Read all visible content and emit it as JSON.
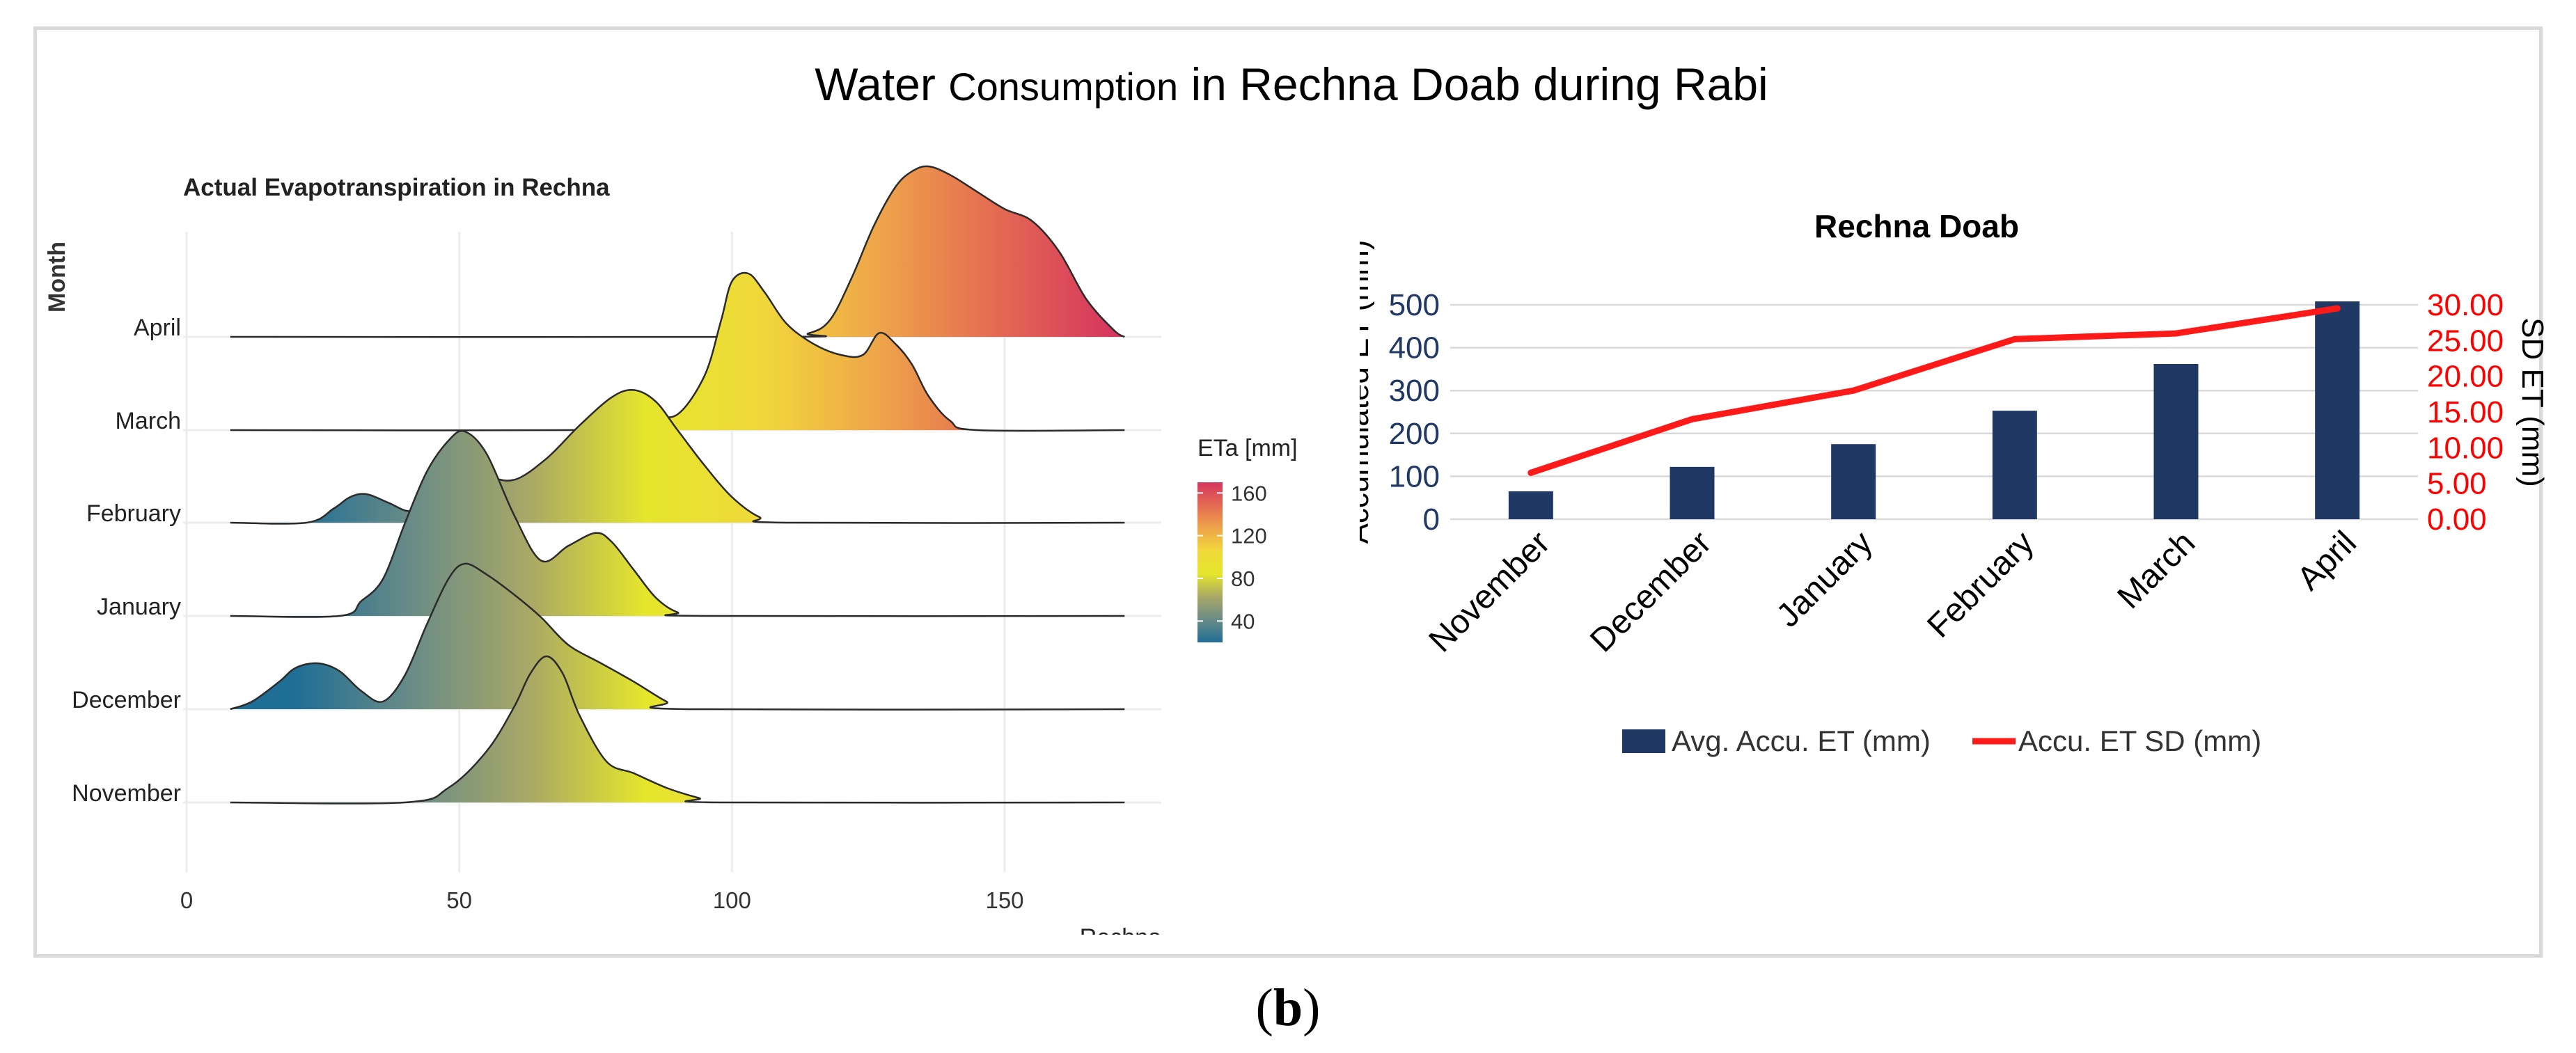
{
  "main_title": {
    "part1": "Water",
    "part2": "Consumption",
    "part3": "in Rechna Doab during Rabi"
  },
  "caption": {
    "open": "(",
    "bold": "b",
    "close": ")"
  },
  "chart_data": [
    {
      "type": "ridgeline",
      "title": "Actual Evapotranspiration in Rechna",
      "xlabel": "Rechna",
      "ylabel": "Month",
      "xlim": [
        0,
        180
      ],
      "xticks": [
        0,
        50,
        100,
        150
      ],
      "xtick_labels": [
        "0",
        "50",
        "100",
        "150"
      ],
      "months": [
        "November",
        "December",
        "January",
        "February",
        "March",
        "April"
      ],
      "legend": {
        "title": "ETa [mm]",
        "ticks": [
          160,
          120,
          80,
          40
        ],
        "tick_labels": [
          "160",
          "120",
          "80",
          "40"
        ],
        "range": [
          20,
          170
        ],
        "colors": [
          "#1f6e96",
          "#6a8c86",
          "#a9a866",
          "#e5e62c",
          "#f0d83a",
          "#eea44a",
          "#e36a52",
          "#d6365e"
        ]
      },
      "densities": [
        {
          "month": "November",
          "x": [
            8,
            40,
            48,
            55,
            60,
            63,
            66,
            69,
            72,
            77,
            82,
            88,
            94,
            98,
            172
          ],
          "y": [
            0,
            0,
            0.1,
            0.35,
            0.65,
            0.88,
            1.0,
            0.88,
            0.6,
            0.28,
            0.2,
            0.1,
            0.03,
            0,
            0
          ]
        },
        {
          "month": "December",
          "x": [
            8,
            12,
            17,
            20,
            24,
            28,
            32,
            36,
            40,
            44,
            48,
            51,
            55,
            60,
            65,
            70,
            76,
            82,
            88,
            92,
            172
          ],
          "y": [
            0,
            0.05,
            0.18,
            0.27,
            0.3,
            0.25,
            0.12,
            0.05,
            0.22,
            0.55,
            0.85,
            0.95,
            0.88,
            0.75,
            0.6,
            0.42,
            0.3,
            0.18,
            0.05,
            0,
            0
          ]
        },
        {
          "month": "January",
          "x": [
            8,
            28,
            32,
            36,
            40,
            44,
            48,
            51,
            55,
            60,
            65,
            70,
            75,
            78,
            82,
            86,
            90,
            95,
            172
          ],
          "y": [
            0,
            0,
            0.08,
            0.2,
            0.5,
            0.78,
            0.95,
            1.0,
            0.88,
            0.55,
            0.3,
            0.38,
            0.45,
            0.4,
            0.25,
            0.1,
            0.02,
            0,
            0
          ]
        },
        {
          "month": "February",
          "x": [
            8,
            22,
            27,
            30,
            33,
            37,
            41,
            45,
            49,
            52,
            55,
            60,
            66,
            72,
            78,
            82,
            86,
            90,
            95,
            100,
            105,
            110,
            172
          ],
          "y": [
            0,
            0,
            0.1,
            0.18,
            0.2,
            0.14,
            0.08,
            0.15,
            0.45,
            0.55,
            0.35,
            0.3,
            0.45,
            0.68,
            0.88,
            0.93,
            0.85,
            0.65,
            0.4,
            0.18,
            0.04,
            0,
            0
          ]
        },
        {
          "month": "March",
          "x": [
            8,
            70,
            75,
            80,
            85,
            90,
            95,
            98,
            100,
            103,
            106,
            110,
            115,
            120,
            124,
            127,
            130,
            133,
            136,
            140,
            145,
            172
          ],
          "y": [
            0,
            0,
            0.03,
            0.1,
            0.1,
            0.1,
            0.35,
            0.7,
            0.95,
            1.0,
            0.88,
            0.68,
            0.55,
            0.48,
            0.48,
            0.62,
            0.55,
            0.42,
            0.22,
            0.06,
            0,
            0
          ]
        },
        {
          "month": "April",
          "x": [
            8,
            108,
            114,
            118,
            122,
            126,
            130,
            133,
            136,
            140,
            145,
            150,
            155,
            160,
            165,
            170,
            172
          ],
          "y": [
            0,
            0,
            0.02,
            0.1,
            0.35,
            0.65,
            0.88,
            0.97,
            1.0,
            0.95,
            0.85,
            0.75,
            0.68,
            0.5,
            0.22,
            0.04,
            0
          ]
        }
      ]
    },
    {
      "type": "bar+line",
      "title": "Rechna Doab",
      "categories": [
        "November",
        "December",
        "January",
        "February",
        "March",
        "April"
      ],
      "ylabel": "Accumulated ET (mm)",
      "y2label": "SD ET (mm)",
      "ylim": [
        0,
        500
      ],
      "yticks": [
        0,
        100,
        200,
        300,
        400,
        500
      ],
      "ytick_labels": [
        "0",
        "100",
        "200",
        "300",
        "400",
        "500"
      ],
      "y2lim": [
        0,
        30
      ],
      "y2ticks": [
        0,
        5,
        10,
        15,
        20,
        25,
        30
      ],
      "y2tick_labels": [
        "0.00",
        "5.00",
        "10.00",
        "15.00",
        "20.00",
        "25.00",
        "30.00"
      ],
      "series": [
        {
          "name": "Avg. Accu. ET (mm)",
          "type": "bar",
          "axis": "left",
          "color": "#1f3864",
          "values": [
            65,
            122,
            175,
            253,
            362,
            508
          ]
        },
        {
          "name": "Accu. ET SD (mm)",
          "type": "line",
          "axis": "right",
          "color": "#ff1a1a",
          "values": [
            6.5,
            14.0,
            18.0,
            25.2,
            26.0,
            29.5
          ]
        }
      ],
      "axis_colors": {
        "left": "#1f3864",
        "right": "#ff0000"
      }
    }
  ]
}
